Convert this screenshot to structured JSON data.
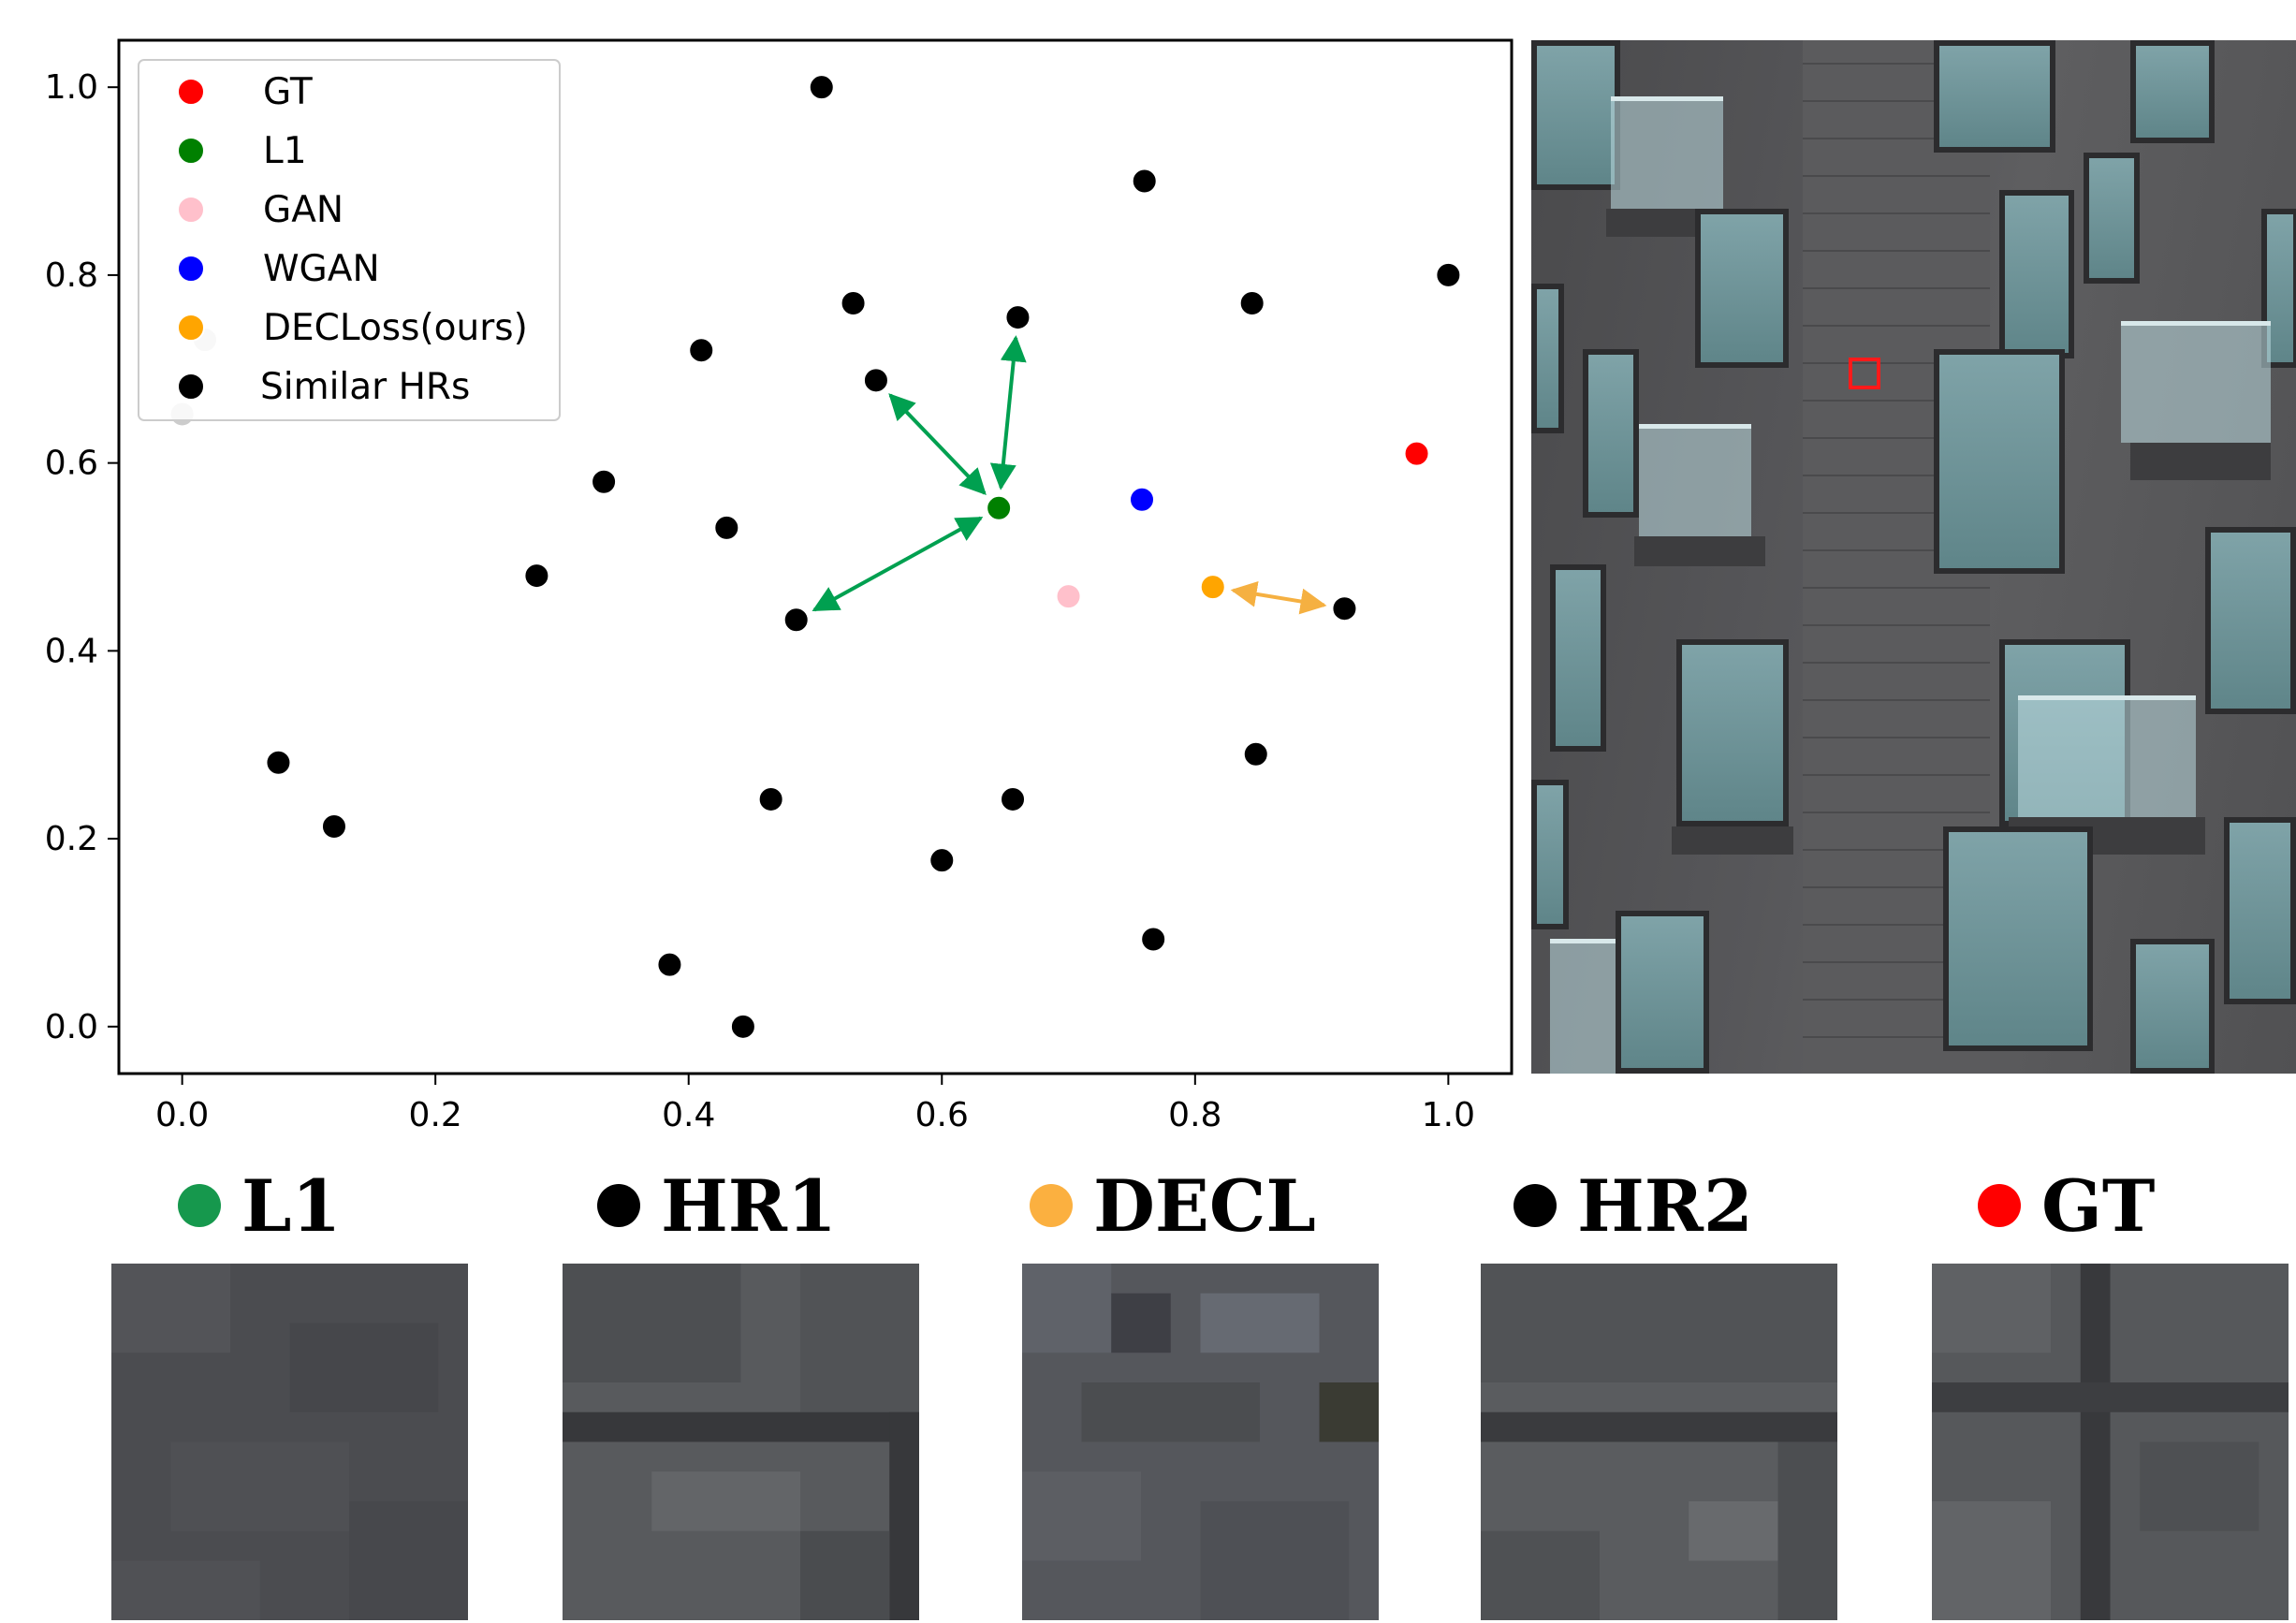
{
  "chart_data": {
    "type": "scatter",
    "xlim": [
      -0.05,
      1.05
    ],
    "ylim": [
      -0.05,
      1.05
    ],
    "xticks": [
      "0.0",
      "0.2",
      "0.4",
      "0.6",
      "0.8",
      "1.0"
    ],
    "yticks": [
      "0.0",
      "0.2",
      "0.4",
      "0.6",
      "0.8",
      "1.0"
    ],
    "legend_position": "top-left",
    "series": [
      {
        "name": "GT",
        "color": "#ff0000",
        "points": [
          [
            0.975,
            0.61
          ]
        ]
      },
      {
        "name": "L1",
        "color": "#008000",
        "points": [
          [
            0.645,
            0.552
          ]
        ]
      },
      {
        "name": "GAN",
        "color": "#ffc0cb",
        "points": [
          [
            0.7,
            0.458
          ]
        ]
      },
      {
        "name": "WGAN",
        "color": "#0000ff",
        "points": [
          [
            0.758,
            0.561
          ]
        ]
      },
      {
        "name": "DECLoss(ours)",
        "color": "#ffa500",
        "points": [
          [
            0.814,
            0.468
          ]
        ]
      },
      {
        "name": "Similar HRs",
        "color": "#000000",
        "points": [
          [
            0.505,
            1.0
          ],
          [
            0.76,
            0.9
          ],
          [
            1.0,
            0.8
          ],
          [
            0.53,
            0.77
          ],
          [
            0.66,
            0.755
          ],
          [
            0.845,
            0.77
          ],
          [
            0.41,
            0.72
          ],
          [
            0.548,
            0.688
          ],
          [
            0.333,
            0.58
          ],
          [
            0.43,
            0.531
          ],
          [
            0.28,
            0.48
          ],
          [
            0.485,
            0.433
          ],
          [
            0.918,
            0.445
          ],
          [
            0.076,
            0.281
          ],
          [
            0.848,
            0.29
          ],
          [
            0.465,
            0.242
          ],
          [
            0.656,
            0.242
          ],
          [
            0.12,
            0.213
          ],
          [
            0.6,
            0.177
          ],
          [
            0.767,
            0.093
          ],
          [
            0.385,
            0.066
          ],
          [
            0.443,
            0.0
          ]
        ]
      }
    ],
    "extra_points": [
      {
        "color": "#cccccc",
        "points": [
          [
            0.018,
            0.731
          ],
          [
            0.0,
            0.652
          ]
        ]
      }
    ],
    "arrows": [
      {
        "color": "#00a050",
        "from": [
          0.645,
          0.552
        ],
        "to": [
          0.548,
          0.688
        ]
      },
      {
        "color": "#00a050",
        "from": [
          0.645,
          0.552
        ],
        "to": [
          0.66,
          0.755
        ]
      },
      {
        "color": "#00a050",
        "from": [
          0.645,
          0.552
        ],
        "to": [
          0.485,
          0.433
        ]
      },
      {
        "color": "#f5b041",
        "from": [
          0.814,
          0.468
        ],
        "to": [
          0.918,
          0.445
        ]
      }
    ]
  },
  "patches": [
    {
      "label": "L1",
      "color": "#16984d"
    },
    {
      "label": "HR1",
      "color": "#000000"
    },
    {
      "label": "DECL",
      "color": "#fbb040"
    },
    {
      "label": "HR2",
      "color": "#000000"
    },
    {
      "label": "GT",
      "color": "#ff0000"
    }
  ],
  "photo": {
    "highlight_color": "#ff1a1a"
  }
}
